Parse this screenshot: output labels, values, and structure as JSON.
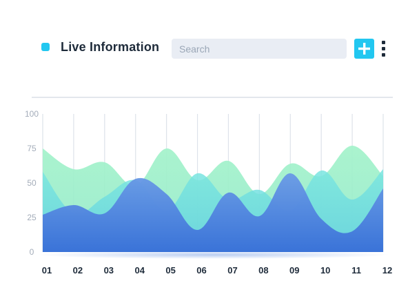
{
  "header": {
    "title": "Live Information",
    "search_placeholder": "Search",
    "add_icon": "plus-icon",
    "more_icon": "more-vertical-icon"
  },
  "colors": {
    "accent": "#22c7f0",
    "title_dot": "#22c7f0",
    "text_dark": "#1e2b3a",
    "grid": "#dde2ea",
    "series_green": "#9ff0c6",
    "series_teal": "#6fdfdc",
    "series_blue_top": "#5b8fe2",
    "series_blue_bottom": "#3a73d8"
  },
  "chart_data": {
    "type": "area",
    "title": "",
    "xlabel": "",
    "ylabel": "",
    "x": [
      "01",
      "02",
      "03",
      "04",
      "05",
      "06",
      "07",
      "08",
      "09",
      "10",
      "11",
      "12"
    ],
    "ylim": [
      0,
      100
    ],
    "yticks": [
      0,
      25,
      50,
      75,
      100
    ],
    "grid": "vertical",
    "legend": "none",
    "series": [
      {
        "name": "",
        "color": "green",
        "values": [
          75,
          60,
          65,
          48,
          75,
          52,
          66,
          42,
          64,
          55,
          77,
          55
        ]
      },
      {
        "name": "",
        "color": "teal",
        "values": [
          58,
          28,
          40,
          52,
          30,
          57,
          38,
          45,
          30,
          59,
          38,
          60
        ]
      },
      {
        "name": "",
        "color": "blue",
        "values": [
          27,
          34,
          28,
          53,
          42,
          16,
          43,
          26,
          57,
          24,
          15,
          46
        ]
      }
    ]
  }
}
